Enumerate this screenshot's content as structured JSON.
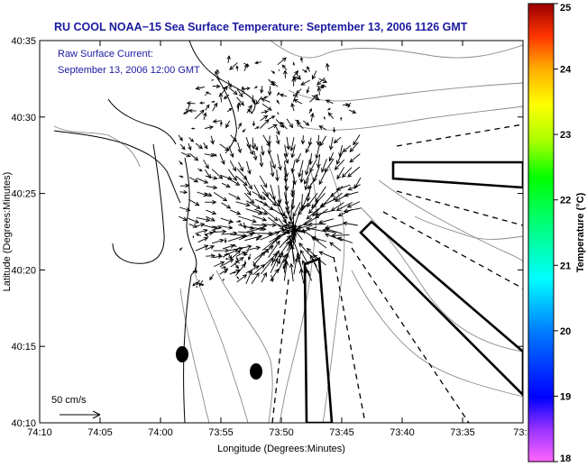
{
  "chart_data": {
    "type": "map",
    "title": "RU COOL  NOAA−15  Sea Surface Temperature:  September 13, 2006 1126 GMT",
    "annotation_lines": [
      "Raw Surface Current:",
      "September 13, 2006 12:00 GMT"
    ],
    "xlabel": "Longitude (Degrees:Minutes)",
    "ylabel": "Latitude (Degrees:Minutes)",
    "x_ticks": [
      "74:10",
      "74:05",
      "74:00",
      "73:55",
      "73:50",
      "73:45",
      "73:40",
      "73:35",
      "73:3"
    ],
    "y_ticks": [
      "40:35",
      "40:30",
      "40:25",
      "40:20",
      "40:15",
      "40:10"
    ],
    "x_range_minutes_west": [
      10,
      30
    ],
    "y_range_minutes_north": [
      10,
      35
    ],
    "scale_label": "50 cm/s",
    "colorbar": {
      "label": "Temperature (°C)",
      "min": 18,
      "max": 25,
      "ticks": [
        "18",
        "19",
        "20",
        "21",
        "22",
        "23",
        "24",
        "25"
      ]
    },
    "colors": {
      "title": "#1a1aa0",
      "annotation": "#1a1aa0",
      "vectors": "#000000",
      "coastline": "#000000",
      "bathymetry": "#8a8a8a",
      "frame": "#000000"
    },
    "gridlines": false,
    "legend": "none"
  }
}
